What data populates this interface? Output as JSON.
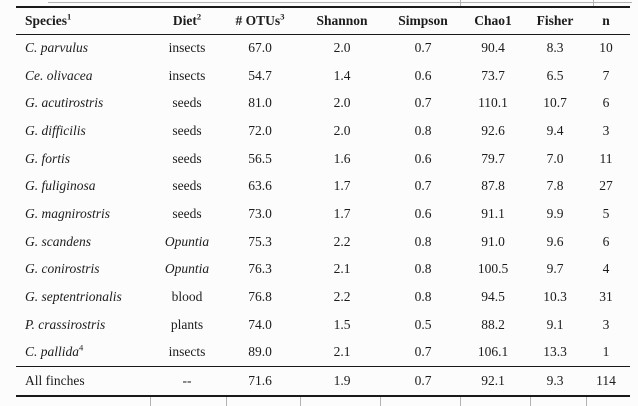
{
  "chart_data": {
    "type": "table",
    "columns": [
      {
        "label": "Species",
        "sup": "1"
      },
      {
        "label": "Diet",
        "sup": "2"
      },
      {
        "label": "# OTUs",
        "sup": "3"
      },
      {
        "label": "Shannon",
        "sup": ""
      },
      {
        "label": "Simpson",
        "sup": ""
      },
      {
        "label": "Chao1",
        "sup": ""
      },
      {
        "label": "Fisher",
        "sup": ""
      },
      {
        "label": "n",
        "sup": ""
      }
    ],
    "rows": [
      {
        "species": "C. parvulus",
        "species_sup": "",
        "diet": "insects",
        "diet_italic": false,
        "values": [
          "67.0",
          "2.0",
          "0.7",
          "90.4",
          "8.3",
          "10"
        ]
      },
      {
        "species": "Ce. olivacea",
        "species_sup": "",
        "diet": "insects",
        "diet_italic": false,
        "values": [
          "54.7",
          "1.4",
          "0.6",
          "73.7",
          "6.5",
          "7"
        ]
      },
      {
        "species": "G. acutirostris",
        "species_sup": "",
        "diet": "seeds",
        "diet_italic": false,
        "values": [
          "81.0",
          "2.0",
          "0.7",
          "110.1",
          "10.7",
          "6"
        ]
      },
      {
        "species": "G. difficilis",
        "species_sup": "",
        "diet": "seeds",
        "diet_italic": false,
        "values": [
          "72.0",
          "2.0",
          "0.8",
          "92.6",
          "9.4",
          "3"
        ]
      },
      {
        "species": "G. fortis",
        "species_sup": "",
        "diet": "seeds",
        "diet_italic": false,
        "values": [
          "56.5",
          "1.6",
          "0.6",
          "79.7",
          "7.0",
          "11"
        ]
      },
      {
        "species": "G. fuliginosa",
        "species_sup": "",
        "diet": "seeds",
        "diet_italic": false,
        "values": [
          "63.6",
          "1.7",
          "0.7",
          "87.8",
          "7.8",
          "27"
        ]
      },
      {
        "species": "G. magnirostris",
        "species_sup": "",
        "diet": "seeds",
        "diet_italic": false,
        "values": [
          "73.0",
          "1.7",
          "0.6",
          "91.1",
          "9.9",
          "5"
        ]
      },
      {
        "species": "G. scandens",
        "species_sup": "",
        "diet": "Opuntia",
        "diet_italic": true,
        "values": [
          "75.3",
          "2.2",
          "0.8",
          "91.0",
          "9.6",
          "6"
        ]
      },
      {
        "species": "G. conirostris",
        "species_sup": "",
        "diet": "Opuntia",
        "diet_italic": true,
        "values": [
          "76.3",
          "2.1",
          "0.8",
          "100.5",
          "9.7",
          "4"
        ]
      },
      {
        "species": "G. septentrionalis",
        "species_sup": "",
        "diet": "blood",
        "diet_italic": false,
        "values": [
          "76.8",
          "2.2",
          "0.8",
          "94.5",
          "10.3",
          "31"
        ]
      },
      {
        "species": "P. crassirostris",
        "species_sup": "",
        "diet": "plants",
        "diet_italic": false,
        "values": [
          "74.0",
          "1.5",
          "0.5",
          "88.2",
          "9.1",
          "3"
        ]
      },
      {
        "species": "C. pallida",
        "species_sup": "4",
        "diet": "insects",
        "diet_italic": false,
        "values": [
          "89.0",
          "2.1",
          "0.7",
          "106.1",
          "13.3",
          "1"
        ]
      }
    ],
    "summary_row": {
      "species": "All finches",
      "diet": "--",
      "values": [
        "71.6",
        "1.9",
        "0.7",
        "92.1",
        "9.3",
        "114"
      ]
    }
  },
  "colors": {
    "text": "#1c1c1c",
    "rule": "#1a1a1a",
    "artifact": "#b3b3b3",
    "background": "#fcfcfc"
  }
}
